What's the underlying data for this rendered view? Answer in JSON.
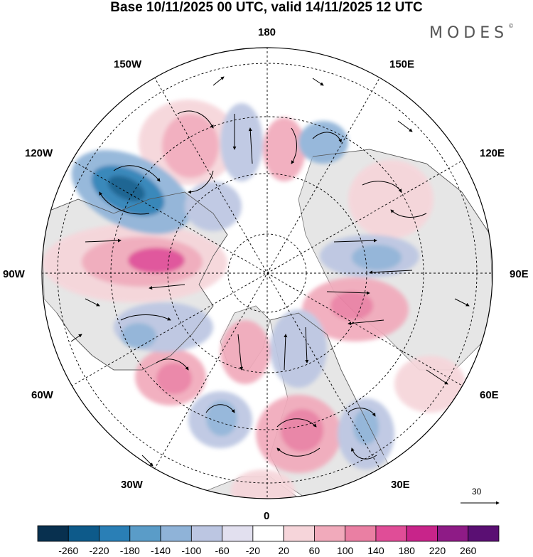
{
  "title": "Base 10/11/2025 00 UTC, valid 14/11/2025 12 UTC",
  "brand": "MODES",
  "brand_mark": "©",
  "longitude_labels": {
    "lon_180": "180",
    "lon_150e": "150E",
    "lon_120e": "120E",
    "lon_90e": "90E",
    "lon_60e": "60E",
    "lon_30e": "30E",
    "lon_0": "0",
    "lon_30w": "30W",
    "lon_60w": "60W",
    "lon_90w": "90W",
    "lon_120w": "120W",
    "lon_150w": "150W"
  },
  "reference_vector_label": "30",
  "colorbar": {
    "labels": [
      "-260",
      "-220",
      "-180",
      "-140",
      "-100",
      "-60",
      "-20",
      "20",
      "60",
      "100",
      "140",
      "180",
      "220",
      "260"
    ],
    "colors": [
      "#08304f",
      "#0d5a8a",
      "#2a7fb6",
      "#5a9cc8",
      "#8fb3d8",
      "#bcc6e2",
      "#e2e0ef",
      "#ffffff",
      "#f6d5da",
      "#f1aabb",
      "#ea7fa3",
      "#e04d97",
      "#c8248a",
      "#8e1b86",
      "#5a0f73"
    ]
  },
  "palette": {
    "neg_strong": "#08304f",
    "neg_mid": "#2a7fb6",
    "neg_weak": "#bcc6e2",
    "pos_weak": "#f6d5da",
    "pos_mid": "#ea7fa3",
    "pos_strong": "#c8248a",
    "land": "#e8e8e8"
  }
}
